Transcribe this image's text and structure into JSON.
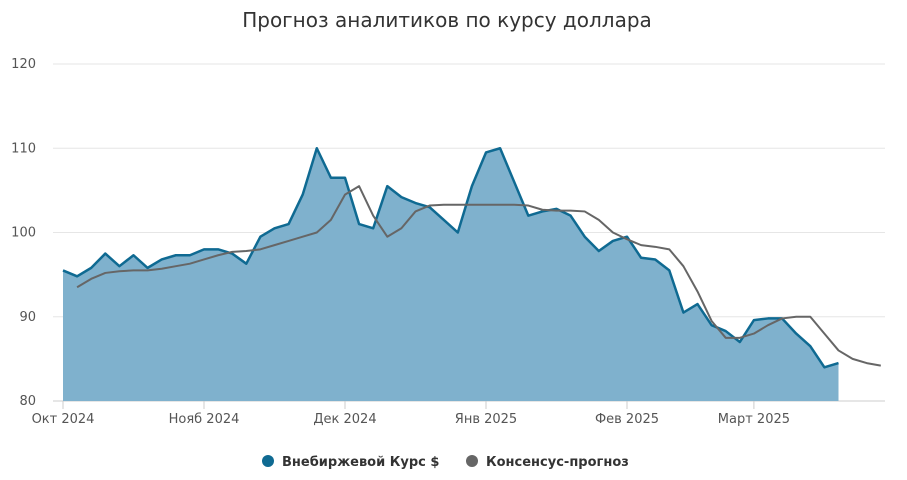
{
  "chart_data": {
    "type": "area-line",
    "title": "Прогноз аналитиков по курсу доллара",
    "categories": [
      "Окт 2024",
      null,
      null,
      null,
      null,
      null,
      null,
      null,
      null,
      null,
      "Нояб 2024",
      null,
      null,
      null,
      null,
      null,
      null,
      null,
      null,
      null,
      "Дек 2024",
      null,
      null,
      null,
      null,
      null,
      null,
      null,
      null,
      null,
      "Янв 2025",
      null,
      null,
      null,
      null,
      null,
      null,
      null,
      null,
      null,
      "Фев 2025",
      null,
      null,
      null,
      null,
      null,
      null,
      null,
      null,
      "Март 2025",
      null,
      null,
      null,
      null,
      null,
      null,
      null,
      null,
      null
    ],
    "series": [
      {
        "name": "Внебиржевой Курс $",
        "color": "#0f6a92",
        "fill": "#7fb1cd",
        "values": [
          95.5,
          94.8,
          95.8,
          97.5,
          96,
          97.3,
          95.8,
          96.8,
          97.3,
          97.3,
          98,
          98,
          97.5,
          96.3,
          99.5,
          100.5,
          101,
          104.5,
          110,
          106.5,
          106.5,
          101,
          100.5,
          105.5,
          104.2,
          103.5,
          103,
          101.5,
          100,
          105.5,
          109.5,
          110,
          106,
          102,
          102.5,
          102.8,
          102,
          99.5,
          97.8,
          99,
          99.5,
          97,
          96.8,
          95.5,
          90.5,
          91.5,
          89,
          88.3,
          87,
          89.6,
          89.8,
          89.8,
          88,
          86.5,
          84,
          84.5,
          null,
          null,
          null
        ]
      },
      {
        "name": "Консенсус-прогноз",
        "color": "#666666",
        "values": [
          null,
          93.5,
          94.5,
          95.2,
          95.4,
          95.5,
          95.5,
          95.7,
          96,
          96.3,
          96.8,
          97.3,
          97.7,
          97.8,
          98,
          98.5,
          99,
          99.5,
          100,
          101.5,
          104.5,
          105.5,
          102,
          99.5,
          100.5,
          102.5,
          103.2,
          103.3,
          103.3,
          103.3,
          103.3,
          103.3,
          103.3,
          103.2,
          102.7,
          102.6,
          102.6,
          102.5,
          101.5,
          100,
          99.2,
          98.5,
          98.3,
          98,
          96,
          93,
          89.5,
          87.5,
          87.5,
          88,
          89,
          89.8,
          90,
          90,
          88,
          86,
          85,
          84.5,
          84.2
        ]
      }
    ],
    "ylim": [
      80,
      120
    ],
    "yticks": [
      80,
      90,
      100,
      110,
      120
    ],
    "grid": true
  }
}
